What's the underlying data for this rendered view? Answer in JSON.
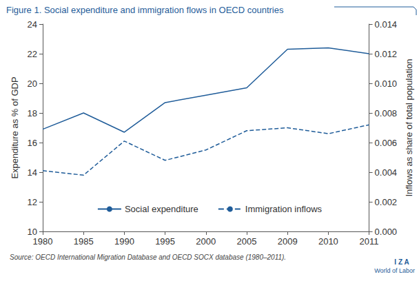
{
  "chart_data": {
    "type": "line",
    "title": "Figure 1. Social expenditure and immigration flows in OECD countries",
    "source": "Source: OECD International Migration Database and OECD SOCX database (1980–2011).",
    "logo": "I Z A",
    "logo_subtitle": "World of Labor",
    "ylabel": "Expenditure as % of GDP",
    "y2label": "Inflows as share of total population",
    "categories": [
      "1980",
      "1985",
      "1990",
      "1995",
      "2000",
      "2005",
      "2009",
      "2010",
      "2011"
    ],
    "series": [
      {
        "name": "Social expenditure",
        "color": "#1f5c99",
        "line_style": "solid",
        "marker": "none",
        "values": [
          16.9,
          18.0,
          16.7,
          18.7,
          19.2,
          19.7,
          22.3,
          22.4,
          22.0
        ]
      },
      {
        "name": "Immigration inflows",
        "color": "#1f5c99",
        "line_style": "dashed",
        "marker": "none",
        "axis": "y2",
        "values": [
          0.0041,
          0.0038,
          0.0061,
          0.0048,
          0.0055,
          0.0068,
          0.007,
          0.0066,
          0.0072
        ]
      }
    ],
    "ylim": [
      10,
      24
    ],
    "yticks": [
      10,
      12,
      14,
      16,
      18,
      20,
      22,
      24
    ],
    "y2lim": [
      0,
      0.014
    ],
    "y2ticks": [
      {
        "value": 0,
        "label": "0.000"
      },
      {
        "value": 0.002,
        "label": "0.002"
      },
      {
        "value": 0.004,
        "label": "0.004"
      },
      {
        "value": 0.006,
        "label": "0.006"
      },
      {
        "value": 0.008,
        "label": "0.008"
      },
      {
        "value": 0.01,
        "label": "0.010"
      },
      {
        "value": 0.012,
        "label": "0.012"
      },
      {
        "value": 0.014,
        "label": "0.014"
      }
    ],
    "grid": false,
    "legend": "bottom"
  }
}
